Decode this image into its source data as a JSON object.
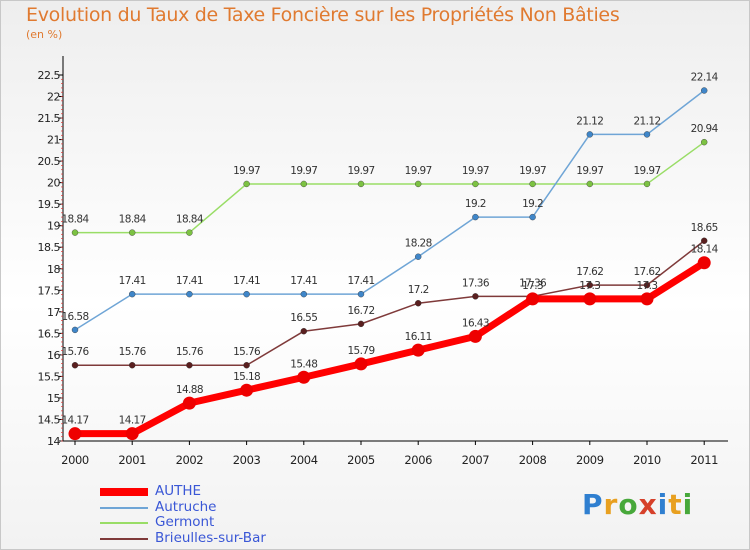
{
  "header": {
    "title": "Evolution du Taux de Taxe Foncière sur les Propriétés Non Bâties",
    "unit": "(en %)"
  },
  "legend": [
    {
      "label": "AUTHE",
      "color": "#ff0000"
    },
    {
      "label": "Autruche",
      "color": "#6fa5d6"
    },
    {
      "label": "Germont",
      "color": "#99dd66"
    },
    {
      "label": "Brieulles-sur-Bar",
      "color": "#7f3a3a"
    }
  ],
  "logo": {
    "text": "Proxiti"
  },
  "chart_data": {
    "type": "line",
    "title": "Evolution du Taux de Taxe Foncière sur les Propriétés Non Bâties",
    "ylabel": "(en %)",
    "xlabel": "",
    "categories": [
      "2000",
      "2001",
      "2002",
      "2003",
      "2004",
      "2005",
      "2006",
      "2007",
      "2008",
      "2009",
      "2010",
      "2011"
    ],
    "yticks": [
      "14",
      "14.5",
      "15",
      "15.5",
      "16",
      "16.5",
      "17",
      "17.5",
      "18",
      "18.5",
      "19",
      "19.5",
      "20",
      "20.5",
      "21",
      "21.5",
      "22",
      "22.5"
    ],
    "ylim": [
      14,
      22.5
    ],
    "grid": false,
    "legend_position": "bottom-left",
    "series": [
      {
        "name": "Germont",
        "color": "#99dd66",
        "marker": "#7cc242",
        "width": 1.5,
        "values": [
          18.84,
          18.84,
          18.84,
          19.97,
          19.97,
          19.97,
          19.97,
          19.97,
          19.97,
          19.97,
          19.97,
          20.94
        ],
        "labels": [
          "18.84",
          "18.84",
          "18.84",
          "19.97",
          "19.97",
          "19.97",
          "19.97",
          "19.97",
          "19.97",
          "19.97",
          "19.97",
          "20.94"
        ]
      },
      {
        "name": "Autruche",
        "color": "#6fa5d6",
        "marker": "#3f86c9",
        "width": 1.5,
        "values": [
          16.58,
          17.41,
          17.41,
          17.41,
          17.41,
          17.41,
          18.28,
          19.2,
          19.2,
          21.12,
          21.12,
          22.14
        ],
        "labels": [
          "16.58",
          "17.41",
          "17.41",
          "17.41",
          "17.41",
          "17.41",
          "18.28",
          "19.2",
          "19.2",
          "21.12",
          "21.12",
          "22.14"
        ]
      },
      {
        "name": "Brieulles-sur-Bar",
        "color": "#7f3a3a",
        "marker": "#5a1f1f",
        "width": 1.5,
        "values": [
          15.76,
          15.76,
          15.76,
          15.76,
          16.55,
          16.72,
          17.2,
          17.36,
          17.36,
          17.62,
          17.62,
          18.65
        ],
        "labels": [
          "15.76",
          "15.76",
          "15.76",
          "15.76",
          "16.55",
          "16.72",
          "17.2",
          "17.36",
          "17.36",
          "17.62",
          "17.62",
          "18.65"
        ]
      },
      {
        "name": "AUTHE",
        "color": "#ff0000",
        "marker": "#ee0000",
        "width": 7,
        "values": [
          14.17,
          14.17,
          14.88,
          15.18,
          15.48,
          15.79,
          16.11,
          16.43,
          17.3,
          17.3,
          17.3,
          18.14
        ],
        "labels": [
          "14.17",
          "14.17",
          "14.88",
          "15.18",
          "15.48",
          "15.79",
          "16.11",
          "16.43",
          "17.3",
          "17.3",
          "17.3",
          "18.14"
        ]
      }
    ]
  }
}
